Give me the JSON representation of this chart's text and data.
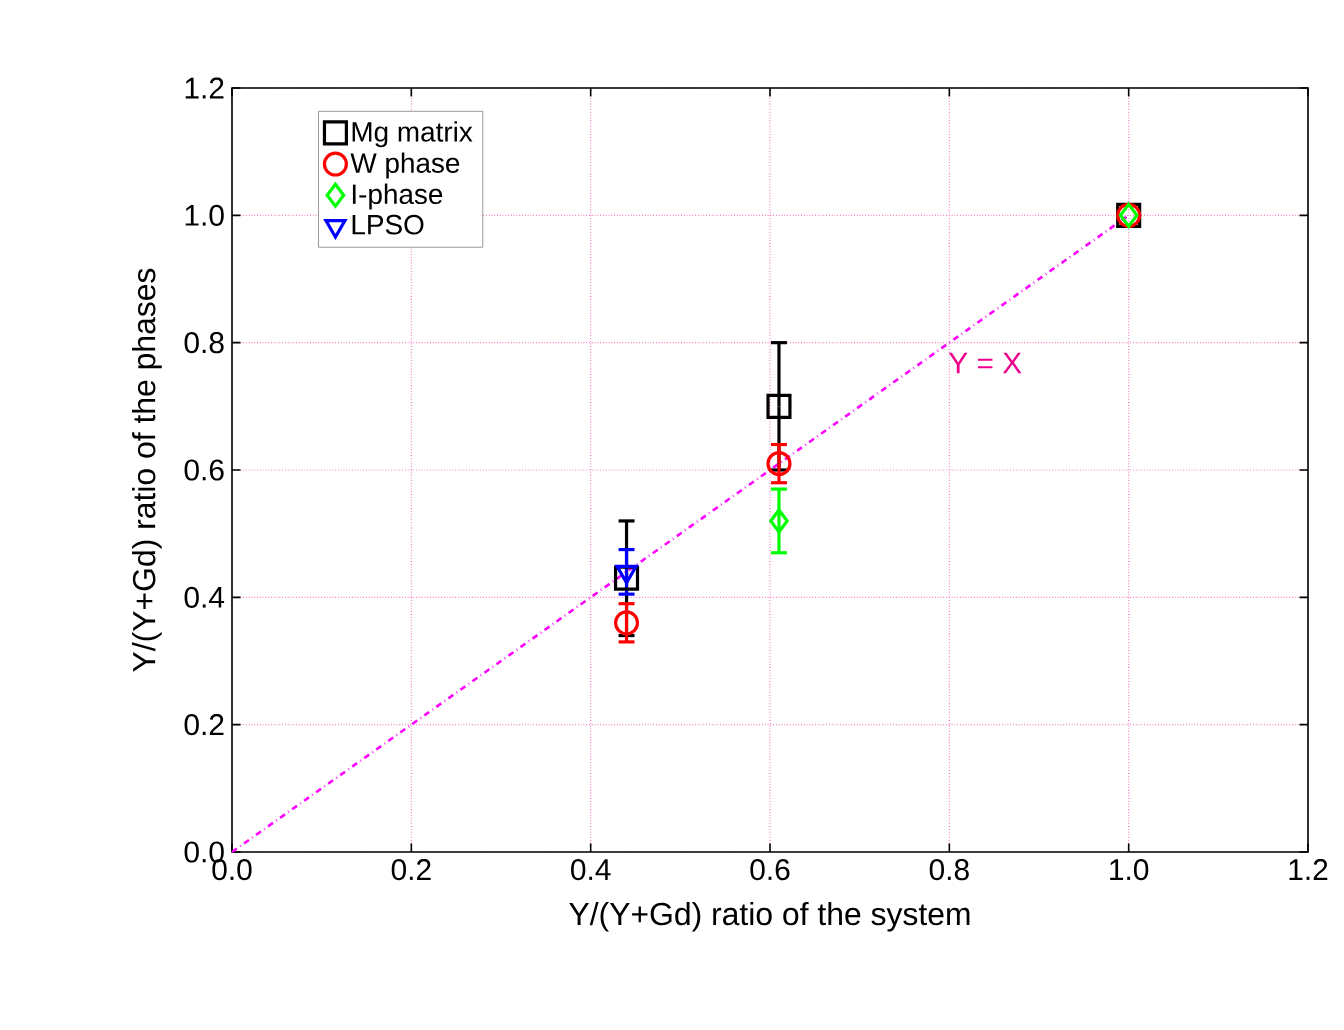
{
  "chart_data": {
    "type": "scatter",
    "xlabel": "Y/(Y+Gd) ratio of the system",
    "ylabel": "Y/(Y+Gd) ratio of the phases",
    "xlim": [
      0,
      1.2
    ],
    "ylim": [
      0,
      1.2
    ],
    "xticks": [
      {
        "value": 0,
        "label": "0.0"
      },
      0.2,
      0.4,
      0.6,
      0.8,
      {
        "value": 1,
        "label": "1.0"
      },
      1.2
    ],
    "yticks": [
      {
        "value": 0,
        "label": "0.0"
      },
      0.2,
      0.4,
      0.6,
      0.8,
      {
        "value": 1,
        "label": "1.0"
      },
      1.2
    ],
    "grid": true,
    "legend": "top left",
    "series": [
      {
        "name": "Mg matrix",
        "color": "#000000",
        "marker": "square",
        "x": [
          0.44,
          0.61,
          1.0
        ],
        "values": [
          0.43,
          0.7,
          1.0
        ],
        "errors": [
          0.09,
          0.1,
          null
        ]
      },
      {
        "name": "W phase",
        "color": "#ff0000",
        "marker": "circle",
        "x": [
          0.44,
          0.61,
          1.0
        ],
        "values": [
          0.36,
          0.61,
          1.0
        ],
        "errors": [
          0.03,
          0.03,
          null
        ]
      },
      {
        "name": "I-phase",
        "color": "#00ff00",
        "marker": "diamond",
        "x": [
          0.61,
          1.0
        ],
        "values": [
          0.52,
          1.0
        ],
        "errors": [
          0.05,
          null
        ]
      },
      {
        "name": "LPSO",
        "color": "#0000ff",
        "marker": "triangle",
        "x": [
          0.44
        ],
        "values": [
          0.44
        ],
        "errors": [
          0.035
        ]
      },
      {
        "type": "line",
        "color": "#ff00ff",
        "line_style": "dashdot",
        "marker": "none",
        "x": [
          0,
          1.0
        ],
        "values": [
          0,
          1.0
        ]
      }
    ],
    "annotations": [
      "Y = X"
    ]
  }
}
